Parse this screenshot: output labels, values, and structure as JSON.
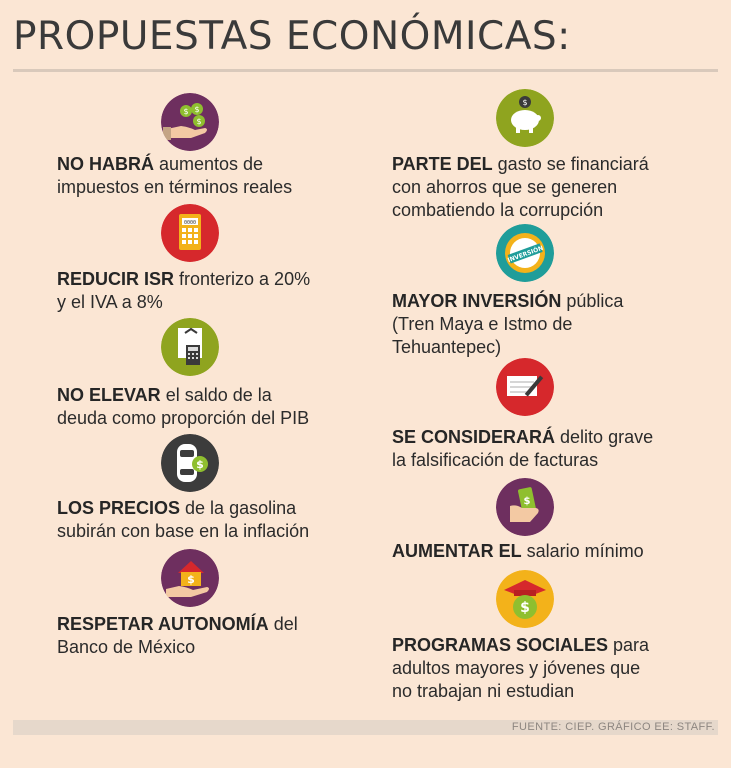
{
  "title": "PROPUESTAS ECONÓMICAS:",
  "colors": {
    "purple": "#6e2f5f",
    "red": "#d6282c",
    "green": "#8fa41f",
    "charcoal": "#3c3c3c",
    "yellow": "#f3b21a",
    "teal": "#1f9d9a"
  },
  "left": [
    {
      "icon": "hand-coins-icon",
      "bold": "NO HABRÁ",
      "line1_rest": " aumentos de",
      "line2": "impuestos en términos reales"
    },
    {
      "icon": "calculator-icon",
      "bold": "REDUCIR ISR",
      "line1_rest": " fronterizo a 20%",
      "line2": "y el IVA a 8%"
    },
    {
      "icon": "document-calculator-icon",
      "bold": "NO ELEVAR",
      "line1_rest": " el saldo de la",
      "line2": "deuda como proporción del PIB"
    },
    {
      "icon": "car-dollar-icon",
      "bold": "LOS PRECIOS",
      "line1_rest": " de la gasolina",
      "line2": "subirán con base en la inflación"
    },
    {
      "icon": "hand-house-icon",
      "bold": "RESPETAR AUTONOMÍA",
      "line1_rest": " del",
      "line2": "Banco de México"
    }
  ],
  "right": [
    {
      "icon": "piggy-bank-icon",
      "bold": "PARTE DEL",
      "line1_rest": " gasto se financiará",
      "line2": "con ahorros que se generen",
      "line3": "combatiendo la corrupción"
    },
    {
      "icon": "inversion-seal-icon",
      "seal_text": "INVERSIÓN",
      "bold": "MAYOR INVERSIÓN",
      "line1_rest": " pública",
      "line2": "(Tren Maya e Istmo de",
      "line3": "Tehuantepec)"
    },
    {
      "icon": "invoice-pen-icon",
      "bold": "SE CONSIDERARÁ",
      "line1_rest": " delito grave",
      "line2": "la falsificación de facturas"
    },
    {
      "icon": "hand-money-icon",
      "bold": "AUMENTAR EL",
      "line1_rest": " salario mínimo"
    },
    {
      "icon": "graduation-dollar-icon",
      "bold": "PROGRAMAS SOCIALES",
      "line1_rest": " para",
      "line2": "adultos mayores y jóvenes que",
      "line3": "no trabajan ni estudian"
    }
  ],
  "calculator_display": "0000",
  "footer": "FUENTE: CIEP. GRÁFICO EE: STAFF."
}
